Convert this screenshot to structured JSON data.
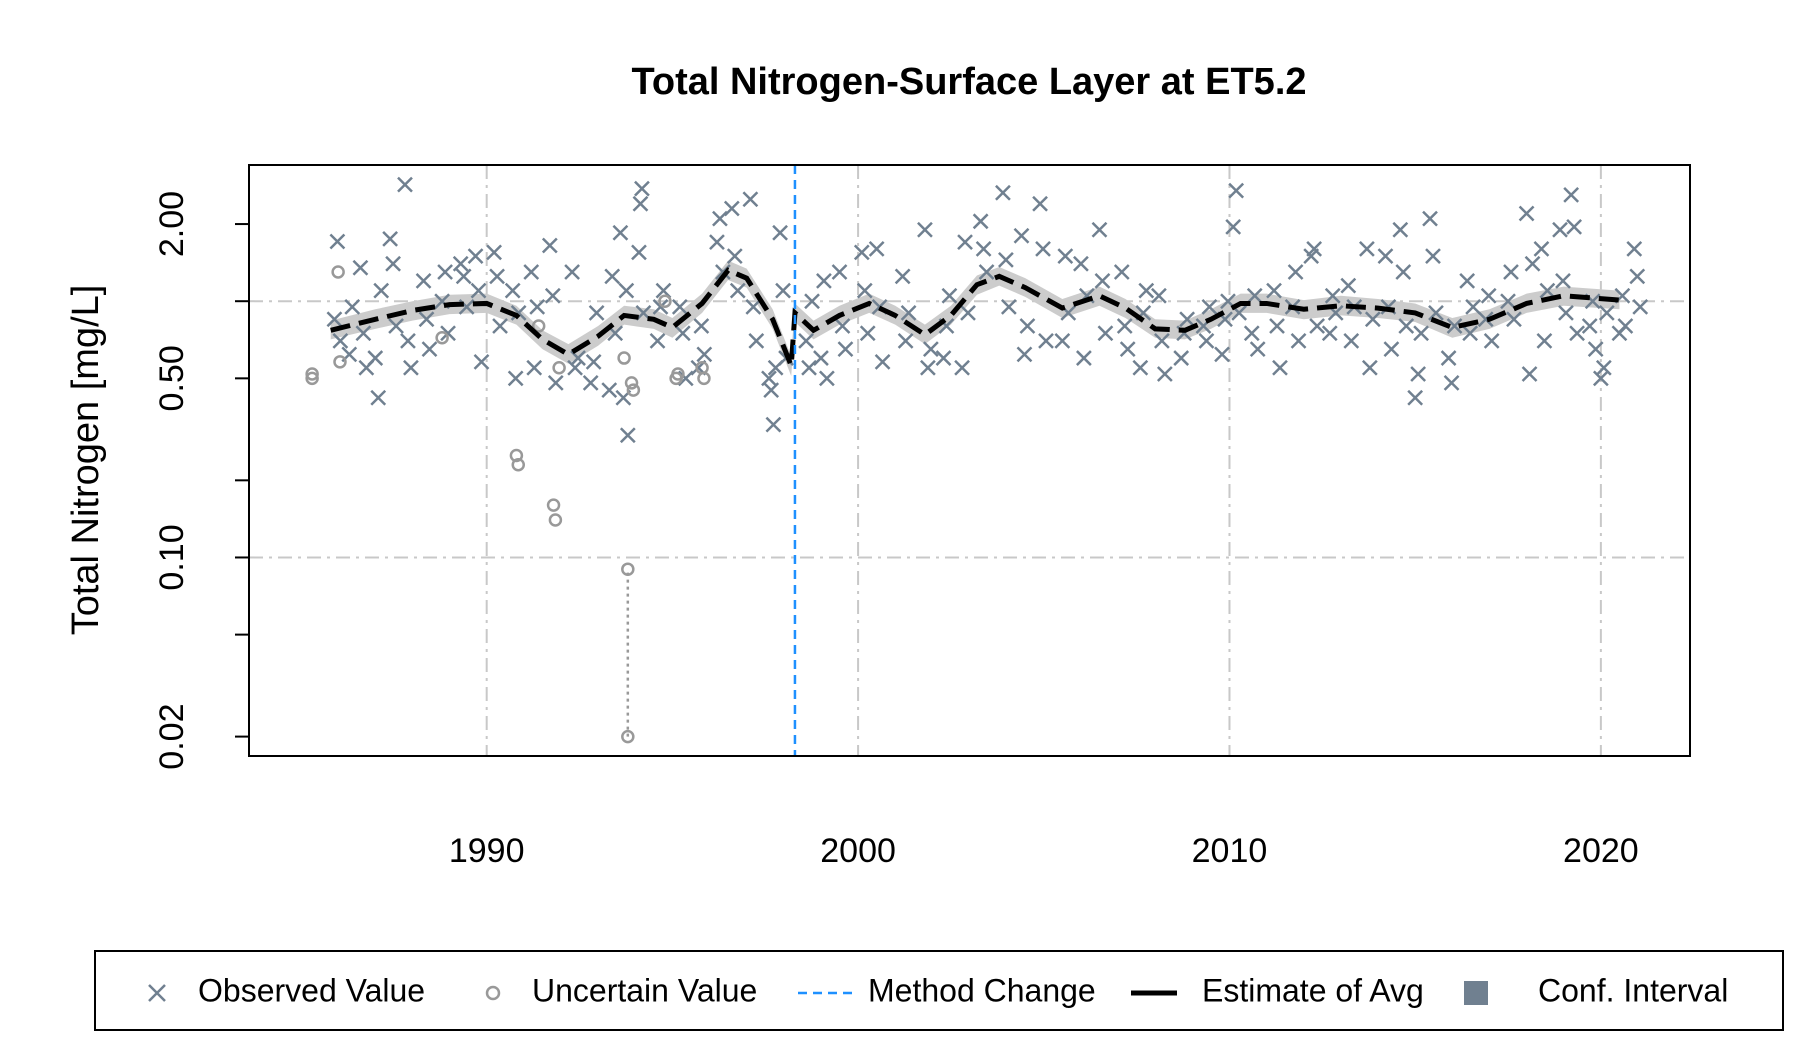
{
  "chart_data": {
    "type": "scatter",
    "title": "Total Nitrogen-Surface Layer at ET5.2",
    "ylabel": "Total Nitrogen [mg/L]",
    "log_y": true,
    "grid": true,
    "xlim": [
      1983.6,
      2022.4
    ],
    "ylim": [
      0.0168,
      3.4
    ],
    "xticks": [
      1990,
      2000,
      2010,
      2020
    ],
    "yticks": [
      {
        "value": 2,
        "label": "2.00"
      },
      {
        "value": 0.5,
        "label": "0.50"
      },
      {
        "value": 0.1,
        "label": "0.10"
      },
      {
        "value": 0.02,
        "label": "0.02"
      }
    ],
    "yticks_unlabeled": [
      1,
      0.2,
      0.05
    ],
    "ygrid": [
      1,
      0.1
    ],
    "legend": "bottom",
    "series": [
      {
        "name": "Observed Value",
        "color": "#708090",
        "marker": "x",
        "x": [
          1985.9,
          1985.98,
          1986.06,
          1986.3,
          1986.38,
          1986.6,
          1986.68,
          1986.76,
          1987.0,
          1987.08,
          1987.16,
          1987.4,
          1987.48,
          1987.56,
          1987.8,
          1987.88,
          1987.96,
          1988.3,
          1988.38,
          1988.46,
          1988.8,
          1988.88,
          1988.96,
          1989.3,
          1989.38,
          1989.46,
          1989.7,
          1989.78,
          1989.86,
          1990.2,
          1990.28,
          1990.36,
          1990.7,
          1990.78,
          1990.86,
          1991.2,
          1991.28,
          1991.36,
          1991.7,
          1991.78,
          1991.86,
          1992.3,
          1992.38,
          1992.46,
          1992.8,
          1992.88,
          1992.96,
          1993.3,
          1993.38,
          1993.46,
          1993.6,
          1993.68,
          1993.76,
          1993.8,
          1994.1,
          1994.14,
          1994.18,
          1994.22,
          1994.6,
          1994.68,
          1994.76,
          1995.2,
          1995.28,
          1995.36,
          1995.7,
          1995.78,
          1995.86,
          1996.2,
          1996.28,
          1996.36,
          1996.6,
          1996.68,
          1996.76,
          1997.1,
          1997.18,
          1997.26,
          1997.6,
          1997.66,
          1997.72,
          1997.78,
          1997.9,
          1997.98,
          1998.06,
          1998.6,
          1998.68,
          1998.76,
          1999.0,
          1999.08,
          1999.16,
          1999.5,
          1999.58,
          1999.66,
          2000.1,
          2000.18,
          2000.26,
          2000.5,
          2000.58,
          2000.66,
          2001.2,
          2001.28,
          2001.36,
          2001.8,
          2001.88,
          2001.96,
          2002.3,
          2002.38,
          2002.46,
          2002.8,
          2002.88,
          2002.96,
          2003.3,
          2003.38,
          2003.46,
          2003.9,
          2003.98,
          2004.06,
          2004.4,
          2004.48,
          2004.56,
          2004.9,
          2004.98,
          2005.06,
          2005.5,
          2005.58,
          2005.66,
          2006.0,
          2006.08,
          2006.16,
          2006.5,
          2006.58,
          2006.66,
          2007.1,
          2007.18,
          2007.26,
          2007.6,
          2007.68,
          2007.76,
          2008.1,
          2008.18,
          2008.26,
          2008.7,
          2008.78,
          2008.86,
          2009.3,
          2009.38,
          2009.46,
          2009.8,
          2009.88,
          2009.96,
          2010.1,
          2010.18,
          2010.26,
          2010.6,
          2010.68,
          2010.76,
          2011.2,
          2011.28,
          2011.36,
          2011.7,
          2011.78,
          2011.86,
          2012.2,
          2012.28,
          2012.36,
          2012.7,
          2012.78,
          2012.86,
          2013.2,
          2013.28,
          2013.36,
          2013.7,
          2013.78,
          2013.86,
          2014.2,
          2014.28,
          2014.36,
          2014.6,
          2014.68,
          2014.76,
          2015.0,
          2015.08,
          2015.16,
          2015.4,
          2015.48,
          2015.56,
          2015.9,
          2015.98,
          2016.06,
          2016.4,
          2016.48,
          2016.56,
          2016.9,
          2016.98,
          2017.06,
          2017.5,
          2017.58,
          2017.66,
          2018.0,
          2018.08,
          2018.16,
          2018.4,
          2018.48,
          2018.56,
          2018.9,
          2018.98,
          2019.06,
          2019.2,
          2019.28,
          2019.36,
          2019.7,
          2019.78,
          2019.86,
          2020.0,
          2020.08,
          2020.16,
          2020.5,
          2020.58,
          2020.66,
          2020.9,
          2020.98,
          2021.06
        ],
        "values": [
          0.85,
          1.71,
          0.7,
          0.62,
          0.95,
          1.35,
          0.75,
          0.55,
          0.6,
          0.42,
          1.1,
          1.75,
          1.4,
          0.8,
          2.85,
          0.7,
          0.55,
          1.2,
          0.85,
          0.65,
          1.0,
          1.3,
          0.75,
          1.4,
          1.25,
          0.95,
          1.5,
          1.1,
          0.58,
          1.55,
          1.25,
          0.8,
          1.1,
          0.5,
          0.9,
          1.3,
          0.55,
          0.95,
          1.65,
          1.05,
          0.48,
          1.3,
          0.55,
          0.6,
          0.48,
          0.58,
          0.9,
          0.45,
          1.25,
          0.75,
          1.85,
          0.42,
          1.1,
          0.3,
          1.55,
          2.4,
          2.75,
          0.9,
          0.7,
          0.95,
          1.1,
          0.95,
          0.75,
          0.5,
          0.55,
          0.8,
          0.62,
          1.7,
          2.1,
          1.3,
          2.3,
          1.5,
          1.1,
          2.5,
          0.95,
          0.7,
          0.5,
          0.45,
          0.33,
          0.55,
          1.85,
          1.1,
          0.6,
          0.7,
          0.55,
          1.0,
          0.6,
          1.2,
          0.5,
          1.3,
          0.8,
          0.65,
          1.55,
          1.1,
          0.75,
          1.6,
          0.95,
          0.58,
          1.25,
          0.7,
          0.9,
          1.9,
          0.55,
          0.65,
          0.6,
          0.8,
          1.05,
          0.55,
          1.7,
          0.9,
          2.05,
          1.6,
          1.3,
          2.65,
          1.45,
          0.95,
          1.8,
          0.62,
          0.8,
          2.4,
          1.6,
          0.7,
          0.7,
          1.5,
          0.9,
          1.4,
          0.6,
          1.05,
          1.9,
          1.2,
          0.75,
          1.3,
          0.8,
          0.65,
          0.55,
          0.9,
          1.1,
          1.05,
          0.7,
          0.52,
          0.6,
          0.75,
          0.85,
          0.8,
          0.7,
          0.95,
          0.62,
          0.85,
          1.0,
          1.95,
          2.7,
          0.9,
          0.75,
          1.05,
          0.65,
          1.1,
          0.8,
          0.55,
          0.95,
          1.3,
          0.7,
          1.5,
          1.6,
          0.8,
          0.75,
          1.05,
          0.9,
          1.15,
          0.7,
          0.95,
          1.6,
          0.55,
          0.85,
          1.5,
          0.95,
          0.65,
          1.9,
          1.3,
          0.8,
          0.42,
          0.52,
          0.75,
          2.1,
          1.5,
          0.9,
          0.6,
          0.48,
          0.8,
          1.2,
          0.75,
          0.95,
          0.85,
          1.05,
          0.7,
          1.0,
          1.3,
          0.85,
          2.2,
          0.52,
          1.4,
          1.6,
          0.7,
          1.1,
          1.9,
          1.2,
          0.9,
          2.6,
          1.95,
          0.75,
          0.8,
          1.0,
          0.65,
          0.5,
          0.55,
          0.9,
          0.75,
          1.05,
          0.8,
          1.6,
          1.25,
          0.95
        ]
      },
      {
        "name": "Uncertain Value",
        "color": "#999999",
        "marker": "o",
        "x": [
          1985.3,
          1985.3,
          1986.0,
          1986.05,
          1988.8,
          1990.8,
          1990.85,
          1991.4,
          1991.8,
          1991.85,
          1991.95,
          1993.7,
          1993.9,
          1993.95,
          1994.8,
          1995.1,
          1995.15,
          1995.8,
          1995.85
        ],
        "values": [
          0.52,
          0.5,
          1.3,
          0.58,
          0.72,
          0.25,
          0.23,
          0.8,
          0.16,
          0.14,
          0.55,
          0.6,
          0.48,
          0.45,
          1.0,
          0.5,
          0.52,
          0.55,
          0.5
        ]
      },
      {
        "name": "Estimate of Avg",
        "color": "#000000",
        "x": [
          1985.8,
          1987,
          1988,
          1989,
          1990,
          1990.8,
          1991.5,
          1992.2,
          1993,
          1993.7,
          1994.5,
          1995,
          1995.8,
          1996.5,
          1997,
          1997.7,
          1998.2,
          1998.3,
          1998.8,
          1999.5,
          2000.3,
          2001,
          2001.8,
          2002.5,
          2003.2,
          2003.8,
          2004.5,
          2005.5,
          2006.5,
          2007.2,
          2008,
          2008.8,
          2009.5,
          2010.3,
          2011,
          2012,
          2013,
          2014,
          2015,
          2016,
          2017,
          2018,
          2019,
          2020.5
        ],
        "values": [
          0.77,
          0.85,
          0.92,
          0.97,
          0.98,
          0.88,
          0.71,
          0.62,
          0.73,
          0.88,
          0.85,
          0.79,
          0.98,
          1.32,
          1.23,
          0.85,
          0.56,
          0.9,
          0.77,
          0.88,
          0.98,
          0.88,
          0.74,
          0.88,
          1.16,
          1.25,
          1.13,
          0.94,
          1.05,
          0.94,
          0.78,
          0.77,
          0.85,
          0.98,
          0.98,
          0.93,
          0.96,
          0.94,
          0.9,
          0.79,
          0.85,
          0.98,
          1.05,
          1.01
        ]
      }
    ],
    "band": {
      "name": "Conf. Interval",
      "color": "#708090",
      "fill": "#cccccc",
      "lower": [
        0.71,
        0.78,
        0.84,
        0.89,
        0.9,
        0.81,
        0.65,
        0.57,
        0.67,
        0.81,
        0.78,
        0.72,
        0.9,
        1.21,
        1.13,
        0.78,
        0.51,
        0.83,
        0.71,
        0.81,
        0.9,
        0.81,
        0.68,
        0.81,
        1.06,
        1.15,
        1.04,
        0.86,
        0.96,
        0.86,
        0.72,
        0.71,
        0.78,
        0.9,
        0.9,
        0.85,
        0.88,
        0.86,
        0.83,
        0.72,
        0.78,
        0.9,
        0.96,
        0.93
      ],
      "upper": [
        0.84,
        0.93,
        1.0,
        1.06,
        1.07,
        0.96,
        0.77,
        0.68,
        0.8,
        0.96,
        0.93,
        0.86,
        1.07,
        1.44,
        1.34,
        0.93,
        0.61,
        0.98,
        0.84,
        0.96,
        1.07,
        0.96,
        0.81,
        0.96,
        1.26,
        1.36,
        1.23,
        1.02,
        1.14,
        1.02,
        0.85,
        0.84,
        0.93,
        1.07,
        1.07,
        1.01,
        1.05,
        1.02,
        0.98,
        0.86,
        0.93,
        1.07,
        1.14,
        1.1
      ]
    },
    "censored_interval": {
      "x": 1993.8,
      "low": 0.02,
      "high": 0.09,
      "color": "#999999"
    },
    "vline": {
      "name": "Method Change",
      "x": 1998.3,
      "color": "#1e90ff"
    }
  }
}
